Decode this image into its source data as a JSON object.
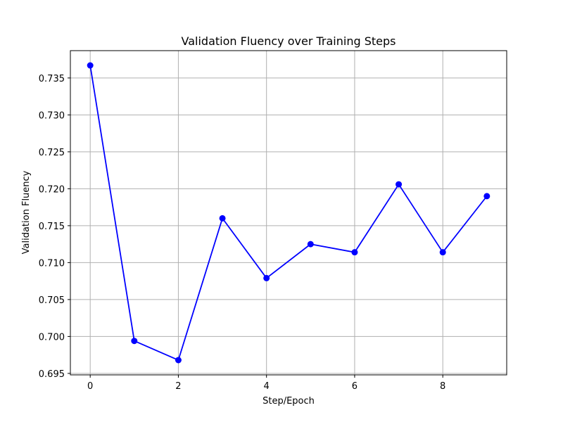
{
  "chart_data": {
    "type": "line",
    "title": "Validation Fluency over Training Steps",
    "xlabel": "Step/Epoch",
    "ylabel": "Validation Fluency",
    "x": [
      0,
      1,
      2,
      3,
      4,
      5,
      6,
      7,
      8,
      9
    ],
    "series": [
      {
        "values": [
          0.7367,
          0.6994,
          0.6968,
          0.716,
          0.7079,
          0.7125,
          0.7114,
          0.7206,
          0.7114,
          0.719
        ],
        "color": "#0000ff",
        "marker": "circle"
      }
    ],
    "xlim": [
      -0.45,
      9.45
    ],
    "ylim": [
      0.6948,
      0.7387
    ],
    "xticks": [
      0,
      2,
      4,
      6,
      8
    ],
    "yticks": [
      0.695,
      0.7,
      0.705,
      0.71,
      0.715,
      0.72,
      0.725,
      0.73,
      0.735
    ],
    "grid": true,
    "legend": "none"
  }
}
